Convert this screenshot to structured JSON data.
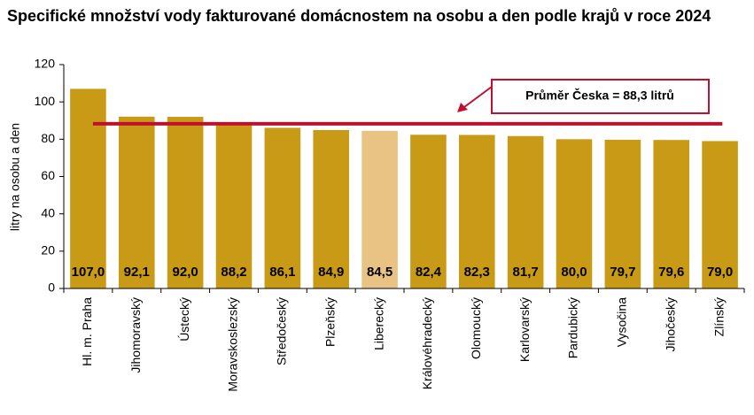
{
  "chart_data": {
    "type": "bar",
    "title": "Specifické množství vody fakturované domácnostem na osobu a den podle krajů v roce 2024",
    "y_label": "litry na osobu a den",
    "categories": [
      "Hl. m. Praha",
      "Jihomoravský",
      "Ústecký",
      "Moravskoslezský",
      "Středočeský",
      "Plzeňský",
      "Liberecký",
      "Královéhradecký",
      "Olomoucký",
      "Karlovarský",
      "Pardubický",
      "Vysočina",
      "Jihočeský",
      "Zlínský"
    ],
    "values": [
      107.0,
      92.1,
      92.0,
      88.2,
      86.1,
      84.9,
      84.5,
      82.4,
      82.3,
      81.7,
      80.0,
      79.7,
      79.6,
      79.0
    ],
    "value_labels": [
      "107,0",
      "92,1",
      "92,0",
      "88,2",
      "86,1",
      "84,9",
      "84,5",
      "82,4",
      "82,3",
      "81,7",
      "80,0",
      "79,7",
      "79,6",
      "79,0"
    ],
    "colors": [
      "#c99a16",
      "#c99a16",
      "#c99a16",
      "#c99a16",
      "#c99a16",
      "#c99a16",
      "#e8c383",
      "#c99a16",
      "#c99a16",
      "#c99a16",
      "#c99a16",
      "#c99a16",
      "#c99a16",
      "#c99a16"
    ],
    "average": 88.3,
    "average_color": "#c0102e",
    "annotation": "Průměr Česka = 88,3 litrů",
    "ylim": [
      0,
      120
    ],
    "yticks": [
      0,
      20,
      40,
      60,
      80,
      100,
      120
    ],
    "grid": false
  }
}
